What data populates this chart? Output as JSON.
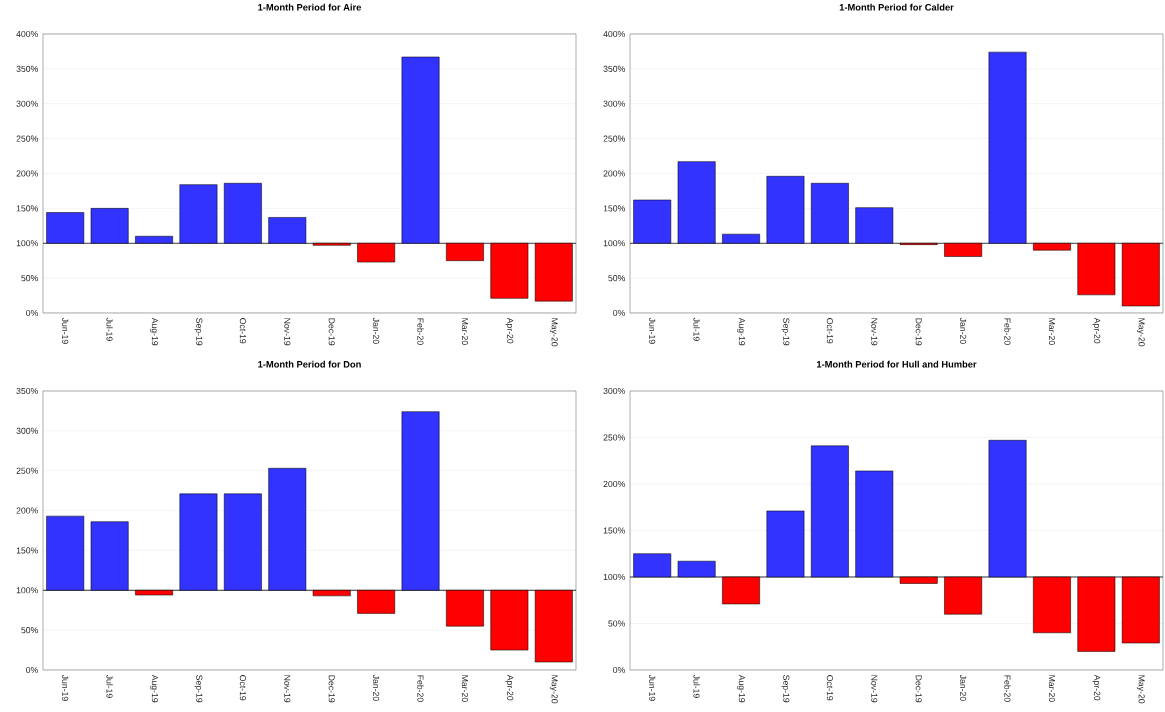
{
  "chart_data": [
    {
      "type": "bar",
      "title": "1-Month Period for Aire",
      "categories": [
        "Jun-19",
        "Jul-19",
        "Aug-19",
        "Sep-19",
        "Oct-19",
        "Nov-19",
        "Dec-19",
        "Jan-20",
        "Feb-20",
        "Mar-20",
        "Apr-20",
        "May-20"
      ],
      "base": [
        100,
        100,
        100,
        100,
        100,
        100,
        100,
        100,
        100,
        100,
        100,
        100
      ],
      "values": [
        44,
        50,
        10,
        84,
        86,
        37,
        -3,
        -27,
        267,
        -25,
        -79,
        -83
      ],
      "colors": [
        "#3333ff",
        "#3333ff",
        "#3333ff",
        "#3333ff",
        "#3333ff",
        "#3333ff",
        "#ff0000",
        "#ff0000",
        "#3333ff",
        "#ff0000",
        "#ff0000",
        "#ff0000"
      ],
      "ylim": [
        0,
        400
      ],
      "yticks": [
        {
          "value": 0,
          "label": "0%"
        },
        {
          "value": 50,
          "label": "50%"
        },
        {
          "value": 100,
          "label": "100%"
        },
        {
          "value": 150,
          "label": "150%"
        },
        {
          "value": 200,
          "label": "200%"
        },
        {
          "value": 250,
          "label": "250%"
        },
        {
          "value": 300,
          "label": "300%"
        },
        {
          "value": 350,
          "label": "350%"
        },
        {
          "value": 400,
          "label": "400%"
        }
      ],
      "ref_lines": [
        {
          "axis": "y",
          "value": 100,
          "color": "#000000"
        }
      ],
      "grid": "y"
    },
    {
      "type": "bar",
      "title": "1-Month Period for Calder",
      "categories": [
        "Jun-19",
        "Jul-19",
        "Aug-19",
        "Sep-19",
        "Oct-19",
        "Nov-19",
        "Dec-19",
        "Jan-20",
        "Feb-20",
        "Mar-20",
        "Apr-20",
        "May-20"
      ],
      "base": [
        100,
        100,
        100,
        100,
        100,
        100,
        100,
        100,
        100,
        100,
        100,
        100
      ],
      "values": [
        62,
        117,
        13,
        96,
        86,
        51,
        -2,
        -19,
        274,
        -10,
        -74,
        -90
      ],
      "colors": [
        "#3333ff",
        "#3333ff",
        "#3333ff",
        "#3333ff",
        "#3333ff",
        "#3333ff",
        "#ff0000",
        "#ff0000",
        "#3333ff",
        "#ff0000",
        "#ff0000",
        "#ff0000"
      ],
      "ylim": [
        0,
        400
      ],
      "yticks": [
        {
          "value": 0,
          "label": "0%"
        },
        {
          "value": 50,
          "label": "50%"
        },
        {
          "value": 100,
          "label": "100%"
        },
        {
          "value": 150,
          "label": "150%"
        },
        {
          "value": 200,
          "label": "200%"
        },
        {
          "value": 250,
          "label": "250%"
        },
        {
          "value": 300,
          "label": "300%"
        },
        {
          "value": 350,
          "label": "350%"
        },
        {
          "value": 400,
          "label": "400%"
        }
      ],
      "ref_lines": [
        {
          "axis": "y",
          "value": 100,
          "color": "#000000"
        }
      ],
      "grid": "y"
    },
    {
      "type": "bar",
      "title": "1-Month Period for Don",
      "categories": [
        "Jun-19",
        "Jul-19",
        "Aug-19",
        "Sep-19",
        "Oct-19",
        "Nov-19",
        "Dec-19",
        "Jan-20",
        "Feb-20",
        "Mar-20",
        "Apr-20",
        "May-20"
      ],
      "base": [
        100,
        100,
        100,
        100,
        100,
        100,
        100,
        100,
        100,
        100,
        100,
        100
      ],
      "values": [
        93,
        86,
        -6,
        121,
        121,
        153,
        -7,
        -29,
        224,
        -45,
        -75,
        -90
      ],
      "colors": [
        "#3333ff",
        "#3333ff",
        "#ff0000",
        "#3333ff",
        "#3333ff",
        "#3333ff",
        "#ff0000",
        "#ff0000",
        "#3333ff",
        "#ff0000",
        "#ff0000",
        "#ff0000"
      ],
      "ylim": [
        0,
        350
      ],
      "yticks": [
        {
          "value": 0,
          "label": "0%"
        },
        {
          "value": 50,
          "label": "50%"
        },
        {
          "value": 100,
          "label": "100%"
        },
        {
          "value": 150,
          "label": "150%"
        },
        {
          "value": 200,
          "label": "200%"
        },
        {
          "value": 250,
          "label": "250%"
        },
        {
          "value": 300,
          "label": "300%"
        },
        {
          "value": 350,
          "label": "350%"
        }
      ],
      "ref_lines": [
        {
          "axis": "y",
          "value": 100,
          "color": "#000000"
        }
      ],
      "grid": "y"
    },
    {
      "type": "bar",
      "title": "1-Month Period for Hull and Humber",
      "categories": [
        "Jun-19",
        "Jul-19",
        "Aug-19",
        "Sep-19",
        "Oct-19",
        "Nov-19",
        "Dec-19",
        "Jan-20",
        "Feb-20",
        "Mar-20",
        "Apr-20",
        "May-20"
      ],
      "base": [
        100,
        100,
        100,
        100,
        100,
        100,
        100,
        100,
        100,
        100,
        100,
        100
      ],
      "values": [
        25,
        17,
        -29,
        71,
        141,
        114,
        -7,
        -40,
        147,
        -60,
        -80,
        -71
      ],
      "colors": [
        "#3333ff",
        "#3333ff",
        "#ff0000",
        "#3333ff",
        "#3333ff",
        "#3333ff",
        "#ff0000",
        "#ff0000",
        "#3333ff",
        "#ff0000",
        "#ff0000",
        "#ff0000"
      ],
      "ylim": [
        0,
        300
      ],
      "yticks": [
        {
          "value": 0,
          "label": "0%"
        },
        {
          "value": 50,
          "label": "50%"
        },
        {
          "value": 100,
          "label": "100%"
        },
        {
          "value": 150,
          "label": "150%"
        },
        {
          "value": 200,
          "label": "200%"
        },
        {
          "value": 250,
          "label": "250%"
        },
        {
          "value": 300,
          "label": "300%"
        }
      ],
      "ref_lines": [
        {
          "axis": "y",
          "value": 100,
          "color": "#000000"
        }
      ],
      "grid": "y"
    }
  ]
}
